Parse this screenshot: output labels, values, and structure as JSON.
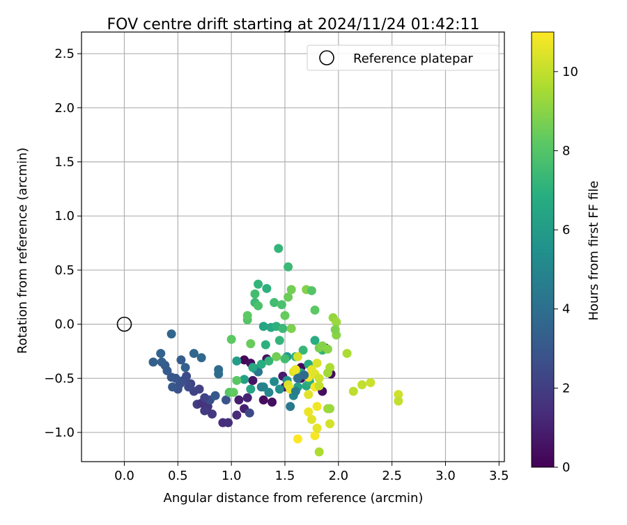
{
  "chart_data": {
    "type": "scatter",
    "title": "FOV centre drift starting at 2024/11/24 01:42:11",
    "xlabel": "Angular distance from reference (arcmin)",
    "ylabel": "Rotation from reference (arcmin)",
    "xlim": [
      -0.4,
      3.55
    ],
    "ylim": [
      -1.27,
      2.7
    ],
    "xticks": [
      0.0,
      0.5,
      1.0,
      1.5,
      2.0,
      2.5,
      3.0,
      3.5
    ],
    "xtick_labels": [
      "0.0",
      "0.5",
      "1.0",
      "1.5",
      "2.0",
      "2.5",
      "3.0",
      "3.5"
    ],
    "yticks": [
      -1.0,
      -0.5,
      0.0,
      0.5,
      1.0,
      1.5,
      2.0,
      2.5
    ],
    "ytick_labels": [
      "−1.0",
      "−0.5",
      "0.0",
      "0.5",
      "1.0",
      "1.5",
      "2.0",
      "2.5"
    ],
    "grid": true,
    "legend": {
      "position": "top-right",
      "label": "Reference platepar"
    },
    "reference_point": {
      "x": 0.0,
      "y": 0.0,
      "marker": "open-circle"
    },
    "colorbar": {
      "label": "Hours from first FF file",
      "colormap": "viridis",
      "range": [
        0,
        11
      ],
      "ticks": [
        0,
        2,
        4,
        6,
        8,
        10
      ],
      "tick_labels": [
        "0",
        "2",
        "4",
        "6",
        "8",
        "10"
      ]
    },
    "points_columns": [
      "x",
      "y",
      "hours"
    ],
    "points": [
      [
        1.12,
        -0.33,
        0.2
      ],
      [
        1.18,
        -0.36,
        0.4
      ],
      [
        1.2,
        -0.52,
        0.6
      ],
      [
        1.3,
        -0.7,
        0.3
      ],
      [
        1.33,
        -0.32,
        0.5
      ],
      [
        1.38,
        -0.72,
        0.4
      ],
      [
        1.48,
        -0.48,
        0.8
      ],
      [
        1.5,
        -0.58,
        0.5
      ],
      [
        1.65,
        -0.4,
        0.3
      ],
      [
        1.65,
        -0.5,
        0.2
      ],
      [
        1.85,
        -0.62,
        0.4
      ],
      [
        1.88,
        -0.22,
        0.5
      ],
      [
        1.93,
        -0.46,
        0.3
      ],
      [
        1.07,
        -0.7,
        0.9
      ],
      [
        1.12,
        -0.78,
        1.0
      ],
      [
        1.15,
        -0.68,
        1.1
      ],
      [
        1.05,
        -0.84,
        1.3
      ],
      [
        0.92,
        -0.91,
        1.4
      ],
      [
        0.97,
        -0.91,
        1.5
      ],
      [
        0.78,
        -0.76,
        1.7
      ],
      [
        0.82,
        -0.83,
        1.8
      ],
      [
        0.75,
        -0.8,
        1.9
      ],
      [
        0.68,
        -0.74,
        2.0
      ],
      [
        0.7,
        -0.6,
        2.1
      ],
      [
        0.65,
        -0.62,
        2.2
      ],
      [
        0.62,
        -0.55,
        2.3
      ],
      [
        0.6,
        -0.58,
        2.4
      ],
      [
        0.58,
        -0.48,
        2.5
      ],
      [
        0.55,
        -0.52,
        2.6
      ],
      [
        0.52,
        -0.55,
        2.7
      ],
      [
        0.5,
        -0.6,
        2.8
      ],
      [
        0.48,
        -0.5,
        2.9
      ],
      [
        0.44,
        -0.49,
        3.0
      ],
      [
        0.4,
        -0.43,
        3.1
      ],
      [
        0.38,
        -0.38,
        3.2
      ],
      [
        0.35,
        -0.35,
        3.3
      ],
      [
        0.27,
        -0.35,
        3.4
      ],
      [
        0.34,
        -0.27,
        3.5
      ],
      [
        0.44,
        -0.09,
        3.6
      ],
      [
        0.45,
        -0.58,
        3.0
      ],
      [
        0.53,
        -0.33,
        3.2
      ],
      [
        0.57,
        -0.4,
        3.4
      ],
      [
        0.65,
        -0.27,
        3.6
      ],
      [
        0.72,
        -0.31,
        3.7
      ],
      [
        0.88,
        -0.42,
        3.8
      ],
      [
        0.88,
        -0.46,
        3.9
      ],
      [
        0.95,
        -0.7,
        2.8
      ],
      [
        0.8,
        -0.7,
        2.6
      ],
      [
        1.17,
        -0.82,
        2.4
      ],
      [
        0.85,
        -0.66,
        3.0
      ],
      [
        0.72,
        -0.73,
        1.6
      ],
      [
        0.75,
        -0.68,
        2.2
      ],
      [
        1.22,
        -0.41,
        4.2
      ],
      [
        1.25,
        -0.44,
        4.4
      ],
      [
        1.28,
        -0.58,
        4.6
      ],
      [
        1.3,
        -0.58,
        4.8
      ],
      [
        1.35,
        -0.63,
        5.0
      ],
      [
        1.4,
        -0.53,
        5.2
      ],
      [
        1.45,
        -0.6,
        5.4
      ],
      [
        1.52,
        -0.52,
        5.6
      ],
      [
        1.58,
        -0.66,
        5.0
      ],
      [
        1.55,
        -0.76,
        4.4
      ],
      [
        1.6,
        -0.42,
        5.8
      ],
      [
        1.52,
        -0.3,
        6.0
      ],
      [
        1.62,
        -0.58,
        6.2
      ],
      [
        1.65,
        -0.45,
        6.4
      ],
      [
        1.7,
        -0.57,
        6.6
      ],
      [
        1.72,
        -0.37,
        6.8
      ],
      [
        1.73,
        -0.53,
        7.0
      ],
      [
        1.05,
        -0.34,
        6.0
      ],
      [
        1.12,
        -0.51,
        6.2
      ],
      [
        1.18,
        -0.6,
        6.4
      ],
      [
        1.2,
        -0.4,
        6.6
      ],
      [
        1.28,
        -0.37,
        6.8
      ],
      [
        1.32,
        -0.19,
        7.0
      ],
      [
        1.35,
        -0.34,
        7.2
      ],
      [
        1.3,
        -0.02,
        6.4
      ],
      [
        1.37,
        -0.03,
        6.6
      ],
      [
        1.42,
        -0.02,
        7.0
      ],
      [
        1.45,
        -0.15,
        7.2
      ],
      [
        1.48,
        -0.04,
        7.4
      ],
      [
        1.5,
        -0.32,
        7.6
      ],
      [
        1.6,
        -0.3,
        7.0
      ],
      [
        1.67,
        -0.24,
        7.3
      ],
      [
        1.78,
        -0.15,
        6.8
      ],
      [
        1.85,
        -0.24,
        7.1
      ],
      [
        1.22,
        0.2,
        7.4
      ],
      [
        1.25,
        0.37,
        7.2
      ],
      [
        1.33,
        0.33,
        7.0
      ],
      [
        1.4,
        0.2,
        7.6
      ],
      [
        1.47,
        0.18,
        7.8
      ],
      [
        1.53,
        0.53,
        7.4
      ],
      [
        1.44,
        0.7,
        7.2
      ],
      [
        1.22,
        0.28,
        7.6
      ],
      [
        1.25,
        0.17,
        7.8
      ],
      [
        1.15,
        0.04,
        8.0
      ],
      [
        1.15,
        0.08,
        8.2
      ],
      [
        1.18,
        -0.18,
        8.4
      ],
      [
        1.0,
        -0.14,
        8.2
      ],
      [
        0.98,
        -0.63,
        8.0
      ],
      [
        1.02,
        -0.63,
        8.3
      ],
      [
        1.05,
        -0.52,
        8.1
      ],
      [
        1.42,
        -0.3,
        8.6
      ],
      [
        1.5,
        0.08,
        8.4
      ],
      [
        1.53,
        0.25,
        8.5
      ],
      [
        1.56,
        0.32,
        8.6
      ],
      [
        1.56,
        -0.04,
        8.8
      ],
      [
        1.7,
        0.32,
        8.9
      ],
      [
        1.78,
        0.13,
        8.2
      ],
      [
        1.75,
        0.31,
        8.0
      ],
      [
        1.82,
        -0.22,
        8.7
      ],
      [
        1.85,
        -0.2,
        8.9
      ],
      [
        1.9,
        -0.23,
        9.0
      ],
      [
        1.95,
        0.06,
        9.2
      ],
      [
        1.98,
        0.02,
        9.3
      ],
      [
        1.98,
        -0.1,
        9.0
      ],
      [
        1.97,
        -0.05,
        8.8
      ],
      [
        1.9,
        -0.78,
        9.4
      ],
      [
        1.92,
        -0.4,
        9.6
      ],
      [
        2.08,
        -0.27,
        9.6
      ],
      [
        2.14,
        -0.62,
        9.9
      ],
      [
        2.22,
        -0.56,
        10.0
      ],
      [
        2.3,
        -0.54,
        10.1
      ],
      [
        2.56,
        -0.65,
        10.2
      ],
      [
        2.56,
        -0.71,
        10.0
      ],
      [
        1.53,
        -0.56,
        10.4
      ],
      [
        1.55,
        -0.6,
        10.6
      ],
      [
        1.58,
        -0.44,
        10.5
      ],
      [
        1.6,
        -0.42,
        10.7
      ],
      [
        1.62,
        -0.3,
        10.3
      ],
      [
        1.72,
        -0.49,
        10.8
      ],
      [
        1.75,
        -0.42,
        10.6
      ],
      [
        1.78,
        -0.58,
        10.9
      ],
      [
        1.78,
        -0.46,
        10.5
      ],
      [
        1.8,
        -0.36,
        10.4
      ],
      [
        1.82,
        -0.5,
        10.2
      ],
      [
        1.82,
        -0.57,
        10.0
      ],
      [
        1.72,
        -0.81,
        10.7
      ],
      [
        1.75,
        -0.88,
        10.5
      ],
      [
        1.78,
        -1.03,
        10.9
      ],
      [
        1.8,
        -0.96,
        10.6
      ],
      [
        1.8,
        -0.76,
        10.8
      ],
      [
        1.92,
        -0.92,
        10.3
      ],
      [
        1.62,
        -1.06,
        11.0
      ],
      [
        1.72,
        -0.65,
        10.5
      ],
      [
        1.82,
        -1.18,
        9.6
      ],
      [
        1.92,
        -0.78,
        9.3
      ],
      [
        1.6,
        -0.62,
        4.6
      ],
      [
        1.62,
        -0.5,
        4.0
      ],
      [
        1.68,
        -0.47,
        3.8
      ],
      [
        1.9,
        -0.45,
        9.4
      ]
    ]
  }
}
